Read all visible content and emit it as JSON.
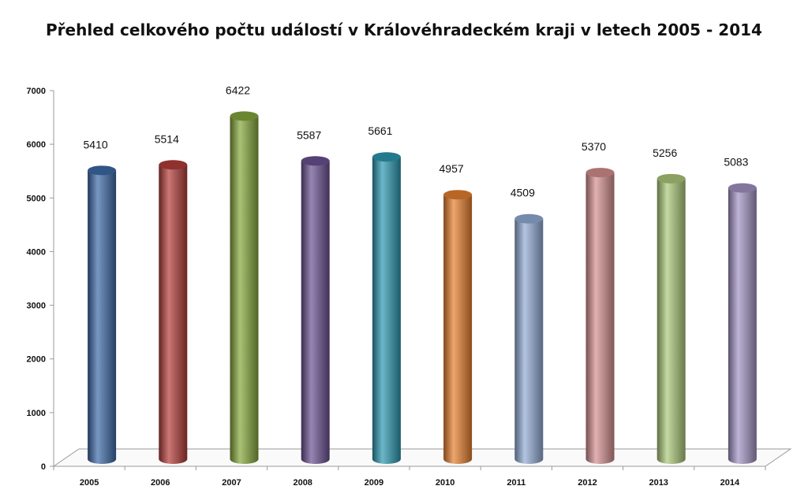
{
  "chart_data": {
    "type": "bar",
    "title": "Přehled celkového počtu událostí v Královéhradeckém kraji v letech 2005 - 2014",
    "xlabel": "",
    "ylabel": "",
    "categories": [
      "2005",
      "2006",
      "2007",
      "2008",
      "2009",
      "2010",
      "2011",
      "2012",
      "2013",
      "2014"
    ],
    "values": [
      5410,
      5514,
      6422,
      5587,
      5661,
      4957,
      4509,
      5370,
      5256,
      5083
    ],
    "y_ticks": [
      "0",
      "1000",
      "2000",
      "3000",
      "4000",
      "5000",
      "6000",
      "7000"
    ],
    "ylim": [
      0,
      7000
    ],
    "grid": false,
    "legend": "none",
    "style": "3d-cylinder",
    "colors": [
      "#3d6aa8",
      "#b33d3a",
      "#86a83c",
      "#6b5192",
      "#2d98b0",
      "#e6802f",
      "#93acd6",
      "#d68f8f",
      "#acc97a",
      "#a394c4"
    ]
  }
}
